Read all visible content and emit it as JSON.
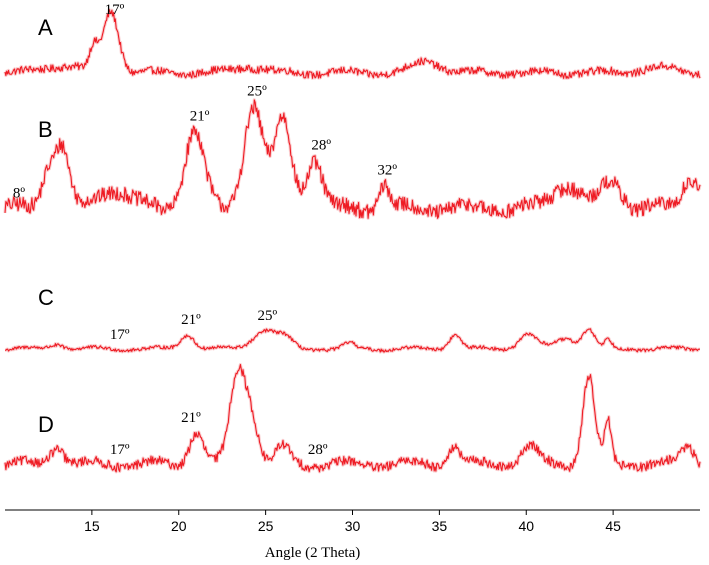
{
  "chart_data": {
    "type": "line",
    "title": "",
    "xlabel": "Angle (2 Theta)",
    "ylabel": "",
    "xlim": [
      10,
      50
    ],
    "x_ticks": [
      15,
      20,
      25,
      30,
      35,
      40,
      45
    ],
    "grid": false,
    "legend": "none",
    "colors": {
      "trace": "#ee1c24",
      "halo": "#f6a6aa"
    },
    "series": [
      {
        "panel": "A",
        "baseline": 0.15,
        "noise": 0.06,
        "peaks": [
          {
            "x": 15.1,
            "h": 0.35,
            "w": 0.25
          },
          {
            "x": 16.1,
            "h": 1.0,
            "w": 0.45
          },
          {
            "x": 13.3,
            "h": 0.12,
            "w": 1.0
          },
          {
            "x": 34.3,
            "h": 0.18,
            "w": 0.8
          },
          {
            "x": 24.0,
            "h": 0.1,
            "w": 0.8
          },
          {
            "x": 47.5,
            "h": 0.08,
            "w": 1.0
          }
        ],
        "labels": [
          {
            "x": 16.3,
            "text": "17º"
          }
        ]
      },
      {
        "panel": "B",
        "baseline": 0.22,
        "noise": 0.07,
        "peaks": [
          {
            "x": 12.5,
            "h": 0.35,
            "w": 0.4
          },
          {
            "x": 13.3,
            "h": 0.55,
            "w": 0.4
          },
          {
            "x": 16.3,
            "h": 0.18,
            "w": 0.9
          },
          {
            "x": 20.9,
            "h": 0.72,
            "w": 0.55
          },
          {
            "x": 24.3,
            "h": 0.95,
            "w": 0.55
          },
          {
            "x": 26.0,
            "h": 0.82,
            "w": 0.5
          },
          {
            "x": 27.8,
            "h": 0.45,
            "w": 0.45
          },
          {
            "x": 31.8,
            "h": 0.22,
            "w": 0.3
          },
          {
            "x": 42.3,
            "h": 0.22,
            "w": 0.8
          },
          {
            "x": 44.9,
            "h": 0.25,
            "w": 0.6
          },
          {
            "x": 49.5,
            "h": 0.3,
            "w": 0.5
          }
        ],
        "labels": [
          {
            "x": 10.8,
            "text": "8º"
          },
          {
            "x": 21.2,
            "text": "21º"
          },
          {
            "x": 24.5,
            "text": "25º"
          },
          {
            "x": 28.2,
            "text": "28º"
          },
          {
            "x": 32.0,
            "text": "32º"
          }
        ]
      },
      {
        "panel": "C",
        "baseline": 0.1,
        "noise": 0.04,
        "peaks": [
          {
            "x": 13.0,
            "h": 0.12,
            "w": 0.4
          },
          {
            "x": 20.5,
            "h": 0.35,
            "w": 0.4
          },
          {
            "x": 25.0,
            "h": 0.45,
            "w": 0.7
          },
          {
            "x": 26.2,
            "h": 0.2,
            "w": 0.4
          },
          {
            "x": 29.8,
            "h": 0.12,
            "w": 0.3
          },
          {
            "x": 35.9,
            "h": 0.35,
            "w": 0.35
          },
          {
            "x": 40.1,
            "h": 0.35,
            "w": 0.5
          },
          {
            "x": 42.3,
            "h": 0.25,
            "w": 0.6
          },
          {
            "x": 43.6,
            "h": 0.45,
            "w": 0.35
          },
          {
            "x": 44.7,
            "h": 0.2,
            "w": 0.2
          }
        ],
        "labels": [
          {
            "x": 16.6,
            "text": "17º"
          },
          {
            "x": 20.7,
            "text": "21º"
          },
          {
            "x": 25.1,
            "text": "25º"
          }
        ]
      },
      {
        "panel": "D",
        "baseline": 0.14,
        "noise": 0.05,
        "peaks": [
          {
            "x": 13.0,
            "h": 0.2,
            "w": 0.4
          },
          {
            "x": 21.0,
            "h": 0.35,
            "w": 0.4
          },
          {
            "x": 23.4,
            "h": 1.0,
            "w": 0.45
          },
          {
            "x": 24.2,
            "h": 0.45,
            "w": 0.4
          },
          {
            "x": 26.0,
            "h": 0.18,
            "w": 0.4
          },
          {
            "x": 35.8,
            "h": 0.2,
            "w": 0.35
          },
          {
            "x": 40.2,
            "h": 0.18,
            "w": 0.5
          },
          {
            "x": 43.6,
            "h": 0.95,
            "w": 0.35
          },
          {
            "x": 44.7,
            "h": 0.45,
            "w": 0.2
          },
          {
            "x": 49.3,
            "h": 0.2,
            "w": 0.4
          }
        ],
        "labels": [
          {
            "x": 16.6,
            "text": "17º"
          },
          {
            "x": 20.7,
            "text": "21º"
          },
          {
            "x": 28.0,
            "text": "28º"
          }
        ]
      }
    ]
  }
}
